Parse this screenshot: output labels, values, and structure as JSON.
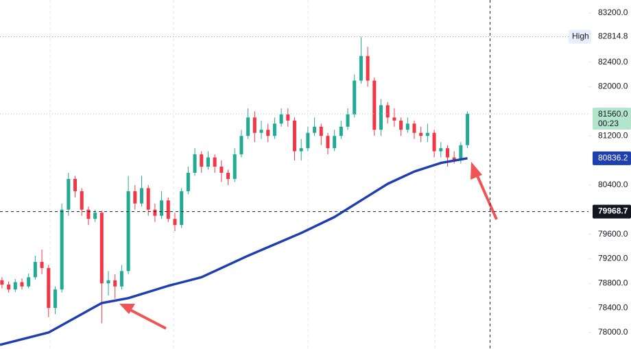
{
  "chart_data": {
    "type": "candlestick",
    "up_color": "#22ab94",
    "down_color": "#f23645",
    "open": [
      78850,
      78780,
      78700,
      78820,
      78750,
      78900,
      79150,
      79050,
      78400,
      78700,
      80000,
      80500,
      80300,
      80000,
      79850,
      79950,
      78800,
      78850,
      78750,
      79000,
      80300,
      80100,
      80350,
      80000,
      79900,
      80150,
      79850,
      79750,
      80300,
      80600,
      80900,
      80700,
      80850,
      80700,
      80600,
      80500,
      80900,
      81200,
      81500,
      81250,
      81300,
      81200,
      81400,
      81550,
      81450,
      80950,
      81000,
      81250,
      81350,
      81200,
      81000,
      81200,
      81350,
      81550,
      82100,
      82500,
      82100,
      81300,
      81700,
      81500,
      81450,
      81300,
      81400,
      81250,
      81200,
      81250,
      80950,
      81000,
      80850,
      80800,
      81050
    ],
    "high": [
      78900,
      78830,
      78870,
      78880,
      78960,
      79250,
      79350,
      79100,
      78750,
      80100,
      80600,
      80550,
      80350,
      80050,
      80000,
      79980,
      79000,
      78950,
      79100,
      80550,
      80400,
      80550,
      80400,
      80100,
      80300,
      80200,
      79950,
      80350,
      80700,
      81000,
      80950,
      80950,
      80900,
      80800,
      80650,
      81000,
      81300,
      81650,
      81600,
      81450,
      81400,
      81500,
      81650,
      81650,
      81500,
      81150,
      81350,
      81500,
      81400,
      81250,
      81300,
      81450,
      81650,
      82200,
      82814.8,
      82650,
      82150,
      81800,
      81750,
      81650,
      81500,
      81500,
      81450,
      81350,
      81400,
      81300,
      81100,
      81050,
      80950,
      81100,
      81600
    ],
    "low": [
      78720,
      78650,
      78660,
      78700,
      78720,
      78860,
      78950,
      78250,
      78300,
      78650,
      79900,
      80200,
      79900,
      79750,
      79800,
      78150,
      78600,
      78550,
      78700,
      78950,
      80000,
      80050,
      79900,
      79800,
      79850,
      79800,
      79650,
      79700,
      80250,
      80550,
      80600,
      80650,
      80600,
      80450,
      80400,
      80450,
      80850,
      81150,
      81100,
      81150,
      81100,
      81150,
      81350,
      81350,
      80800,
      80800,
      80950,
      81200,
      81050,
      80900,
      80950,
      81150,
      81300,
      81500,
      82050,
      82000,
      81200,
      81200,
      81400,
      81350,
      81200,
      81250,
      81150,
      81100,
      81100,
      80850,
      80850,
      80700,
      80750,
      80750,
      81000
    ],
    "close": [
      78780,
      78700,
      78820,
      78750,
      78900,
      79150,
      79050,
      78400,
      78700,
      80000,
      80500,
      80300,
      80000,
      79850,
      79950,
      78800,
      78850,
      78750,
      79000,
      80300,
      80100,
      80350,
      80000,
      79900,
      80150,
      79850,
      79750,
      80300,
      80600,
      80900,
      80700,
      80850,
      80700,
      80600,
      80500,
      80900,
      81200,
      81500,
      81250,
      81300,
      81200,
      81400,
      81550,
      81450,
      80950,
      81000,
      81250,
      81350,
      81200,
      81000,
      81200,
      81350,
      81550,
      82100,
      82500,
      82100,
      81300,
      81700,
      81500,
      81450,
      81300,
      81400,
      81250,
      81200,
      81250,
      80950,
      81000,
      80850,
      80800,
      81050,
      81560
    ],
    "xlim": [
      -0.3,
      88.2
    ],
    "ylim": [
      77732,
      83412
    ],
    "yticks": [
      {
        "value": 78000,
        "label": "78000.0"
      },
      {
        "value": 78400,
        "label": "78400.0"
      },
      {
        "value": 78800,
        "label": "78800.0"
      },
      {
        "value": 79200,
        "label": "79200.0"
      },
      {
        "value": 79600,
        "label": "79600.0"
      },
      {
        "value": 80400,
        "label": "80400.0"
      },
      {
        "value": 81200,
        "label": "81200.0"
      },
      {
        "value": 82000,
        "label": "82000.0"
      },
      {
        "value": 82400,
        "label": "82400.0"
      },
      {
        "value": 83200,
        "label": "83200.0"
      }
    ],
    "ma": {
      "color": "#1e3fae",
      "x": [
        -0.3,
        7,
        15,
        19,
        25,
        30,
        37,
        45,
        50,
        54,
        58,
        62,
        66,
        70
      ],
      "values": [
        77800,
        78000,
        78480,
        78560,
        78760,
        78900,
        79250,
        79620,
        79880,
        80150,
        80420,
        80620,
        80760,
        80836.2
      ]
    },
    "high_marker_label": "High",
    "last_price_label": "81560.0",
    "countdown": "00:23",
    "crosshair": {
      "x": 73.4,
      "y": 79968.7
    }
  }
}
